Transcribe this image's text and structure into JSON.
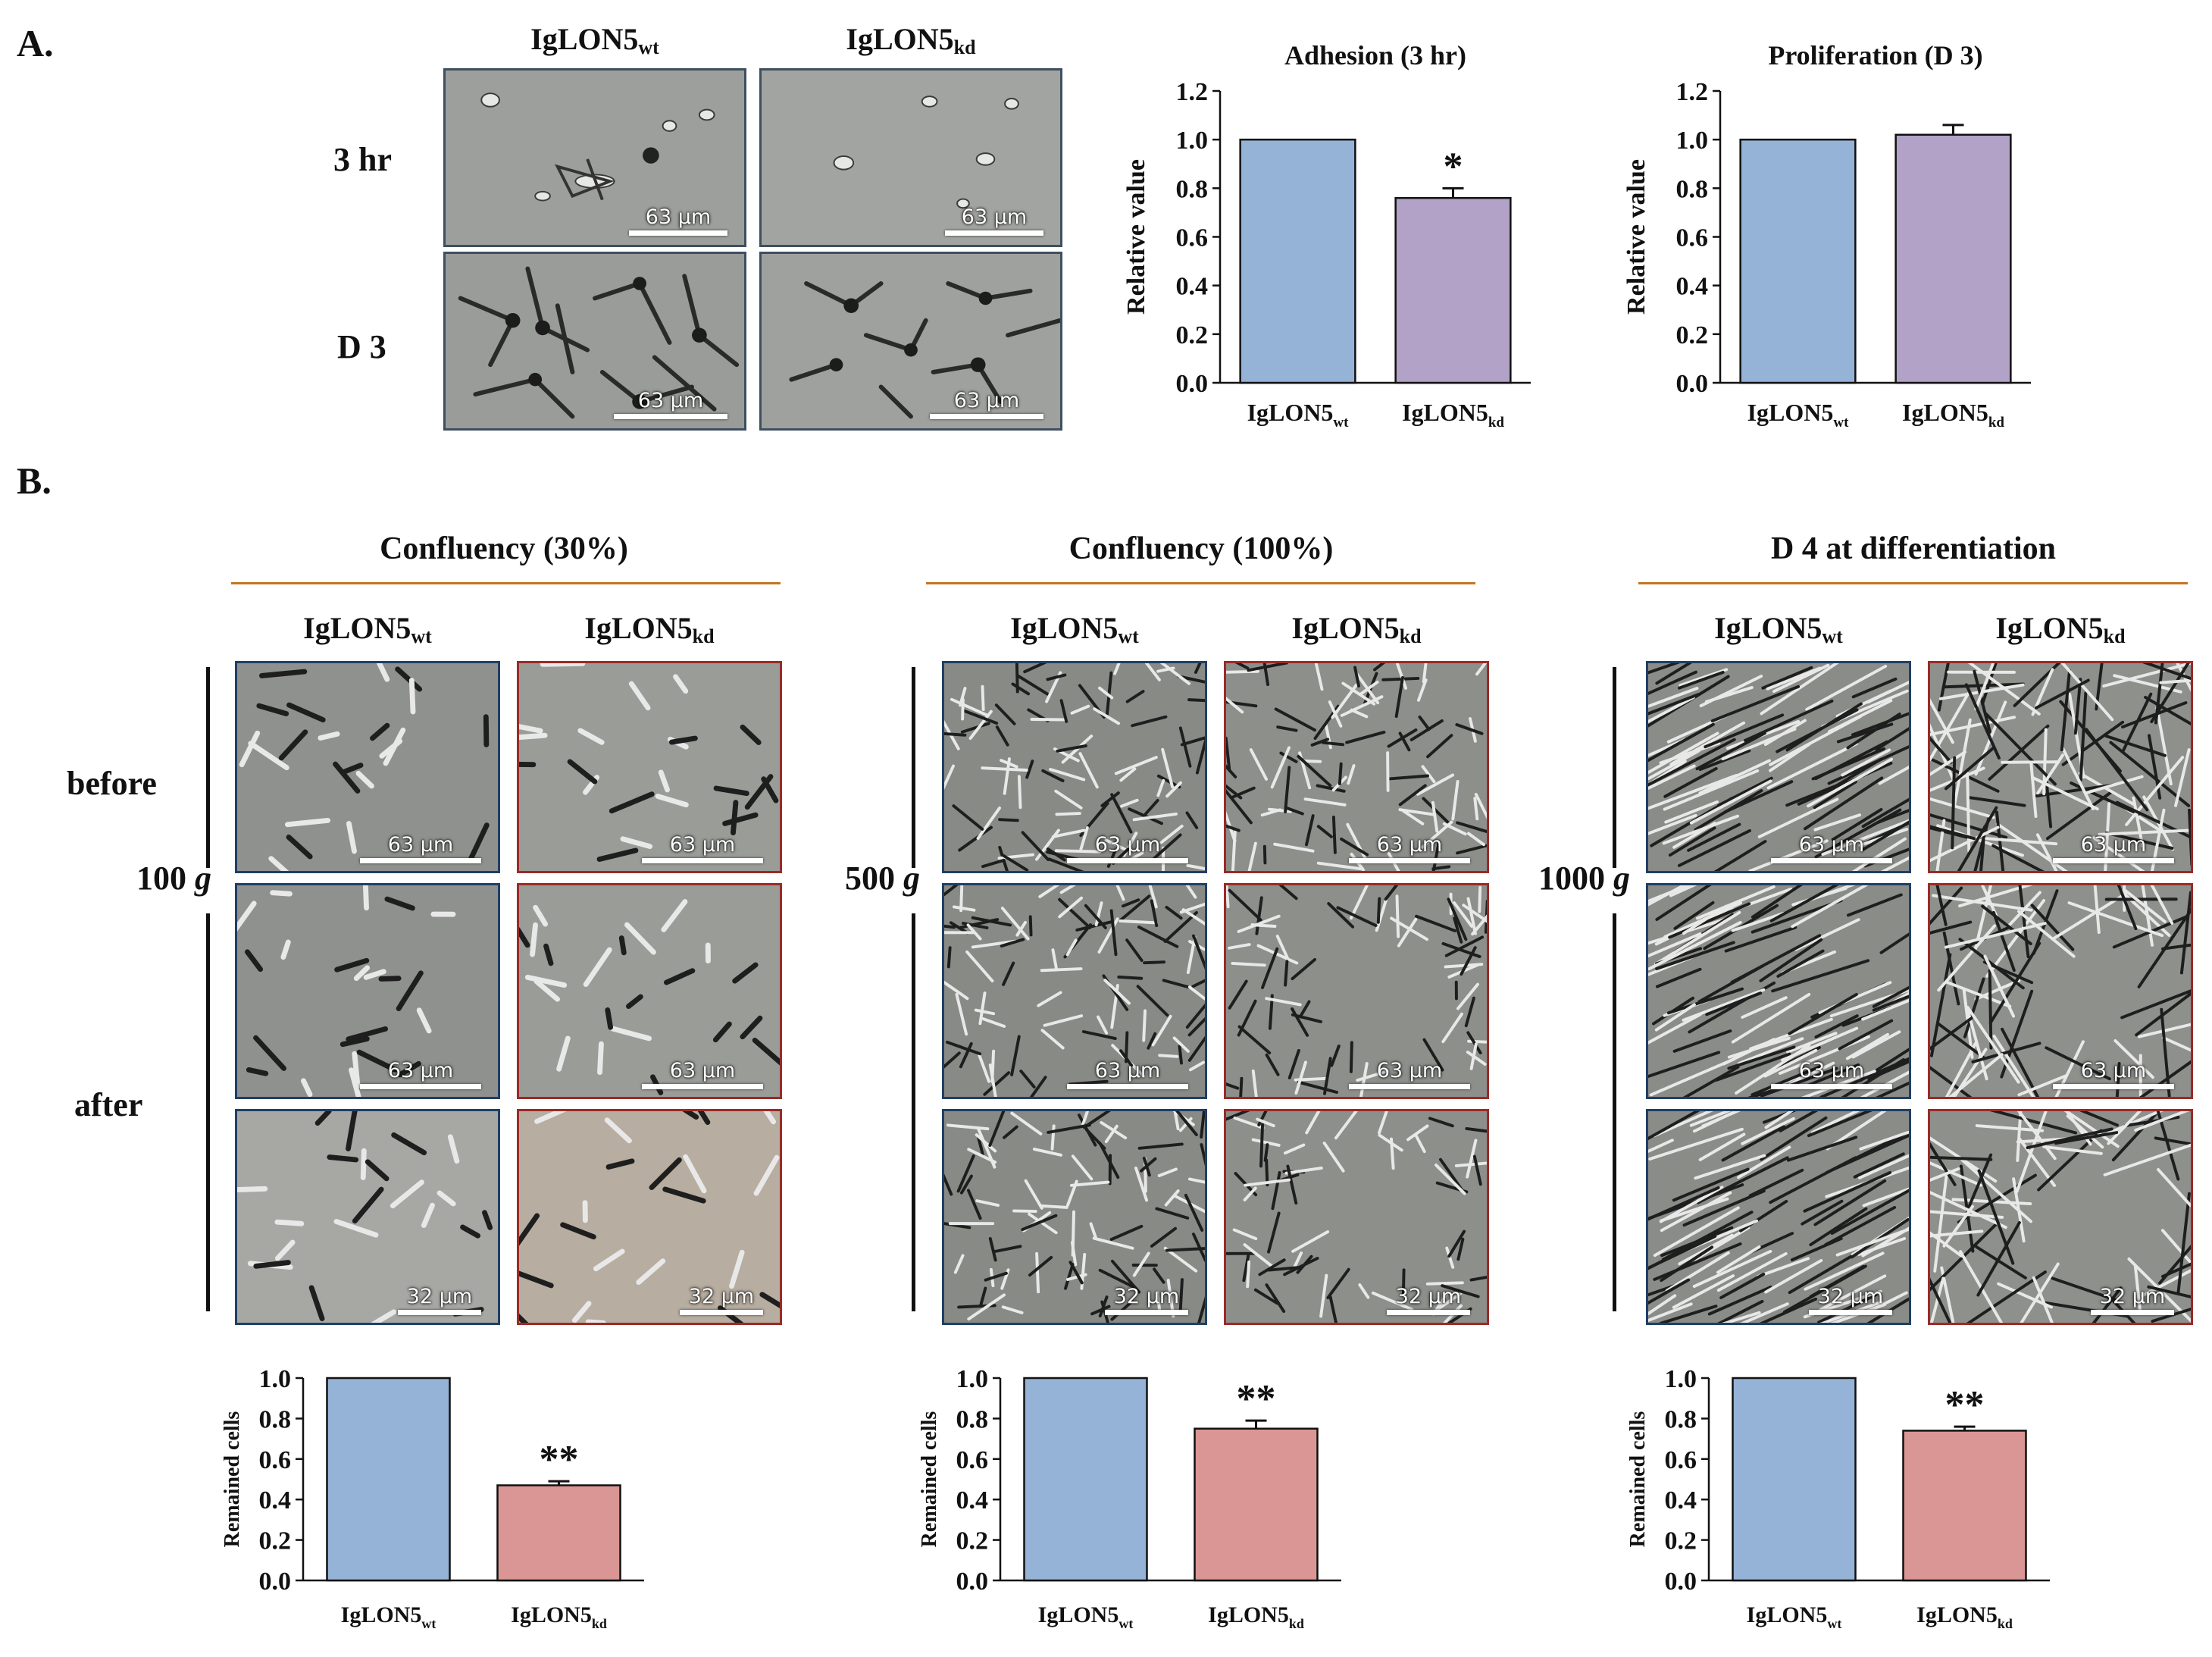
{
  "figure": {
    "panel_a_label": "A.",
    "panel_b_label": "B.",
    "panel_a": {
      "col_wt": "IgLON5",
      "col_wt_sub": "wt",
      "col_kd": "IgLON5",
      "col_kd_sub": "kd",
      "row_1": "3 hr",
      "row_2": "D 3",
      "scale_label": "63 μm"
    },
    "panel_b": {
      "before_label": "before",
      "after_label": "after",
      "scale_large": "63 μm",
      "scale_small": "32 μm",
      "groups": [
        {
          "title": "Confluency (30%)",
          "force": "100",
          "force_unit": "g",
          "col_wt": "IgLON5",
          "col_wt_sub": "wt",
          "col_kd": "IgLON5",
          "col_kd_sub": "kd"
        },
        {
          "title": "Confluency (100%)",
          "force": "500",
          "force_unit": "g",
          "col_wt": "IgLON5",
          "col_wt_sub": "wt",
          "col_kd": "IgLON5",
          "col_kd_sub": "kd"
        },
        {
          "title": "D 4 at differentiation",
          "force": "1000",
          "force_unit": "g",
          "col_wt": "IgLON5",
          "col_wt_sub": "wt",
          "col_kd": "IgLON5",
          "col_kd_sub": "kd"
        }
      ]
    },
    "colors": {
      "wt_bar": "#95b3d7",
      "kd_bar_a": "#b2a2c7",
      "kd_bar_b": "#d99694",
      "rule": "#c27524",
      "wt_border": "#1f3f66",
      "kd_border": "#9a2b27"
    }
  },
  "chart_data": [
    {
      "id": "adhesion",
      "type": "bar",
      "title": "Adhesion  (3 hr)",
      "categories": [
        "IgLON5wt",
        "IgLON5kd"
      ],
      "category_main": [
        "IgLON5",
        "IgLON5"
      ],
      "category_sub": [
        "wt",
        "kd"
      ],
      "values": [
        1.0,
        0.76
      ],
      "errors": [
        0,
        0.04
      ],
      "significance": [
        "",
        "*"
      ],
      "ylabel": "Relative value",
      "ylim": [
        0,
        1.2
      ],
      "yticks": [
        "0.0",
        "0.2",
        "0.4",
        "0.6",
        "0.8",
        "1.0",
        "1.2"
      ],
      "colors": [
        "#95b3d7",
        "#b2a2c7"
      ]
    },
    {
      "id": "proliferation",
      "type": "bar",
      "title": "Proliferation  (D 3)",
      "categories": [
        "IgLON5wt",
        "IgLON5kd"
      ],
      "category_main": [
        "IgLON5",
        "IgLON5"
      ],
      "category_sub": [
        "wt",
        "kd"
      ],
      "values": [
        1.0,
        1.02
      ],
      "errors": [
        0,
        0.04
      ],
      "significance": [
        "",
        ""
      ],
      "ylabel": "Relative value",
      "ylim": [
        0,
        1.2
      ],
      "yticks": [
        "0.0",
        "0.2",
        "0.4",
        "0.6",
        "0.8",
        "1.0",
        "1.2"
      ],
      "colors": [
        "#95b3d7",
        "#b2a2c7"
      ]
    },
    {
      "id": "remained_30",
      "type": "bar",
      "title": "",
      "categories": [
        "IgLON5wt",
        "IgLON5kd"
      ],
      "category_main": [
        "IgLON5",
        "IgLON5"
      ],
      "category_sub": [
        "wt",
        "kd"
      ],
      "values": [
        1.0,
        0.47
      ],
      "errors": [
        0,
        0.02
      ],
      "significance": [
        "",
        "**"
      ],
      "ylabel": "Remained cells",
      "ylim": [
        0,
        1.0
      ],
      "yticks": [
        "0.0",
        "0.2",
        "0.4",
        "0.6",
        "0.8",
        "1.0"
      ],
      "colors": [
        "#95b3d7",
        "#d99694"
      ]
    },
    {
      "id": "remained_100",
      "type": "bar",
      "title": "",
      "categories": [
        "IgLON5wt",
        "IgLON5kd"
      ],
      "category_main": [
        "IgLON5",
        "IgLON5"
      ],
      "category_sub": [
        "wt",
        "kd"
      ],
      "values": [
        1.0,
        0.75
      ],
      "errors": [
        0,
        0.04
      ],
      "significance": [
        "",
        "**"
      ],
      "ylabel": "Remained cells",
      "ylim": [
        0,
        1.0
      ],
      "yticks": [
        "0.0",
        "0.2",
        "0.4",
        "0.6",
        "0.8",
        "1.0"
      ],
      "colors": [
        "#95b3d7",
        "#d99694"
      ]
    },
    {
      "id": "remained_diff",
      "type": "bar",
      "title": "",
      "categories": [
        "IgLON5wt",
        "IgLON5kd"
      ],
      "category_main": [
        "IgLON5",
        "IgLON5"
      ],
      "category_sub": [
        "wt",
        "kd"
      ],
      "values": [
        1.0,
        0.74
      ],
      "errors": [
        0,
        0.02
      ],
      "significance": [
        "",
        "**"
      ],
      "ylabel": "Remained cells",
      "ylim": [
        0,
        1.0
      ],
      "yticks": [
        "0.0",
        "0.2",
        "0.4",
        "0.6",
        "0.8",
        "1.0"
      ],
      "colors": [
        "#95b3d7",
        "#d99694"
      ]
    }
  ]
}
